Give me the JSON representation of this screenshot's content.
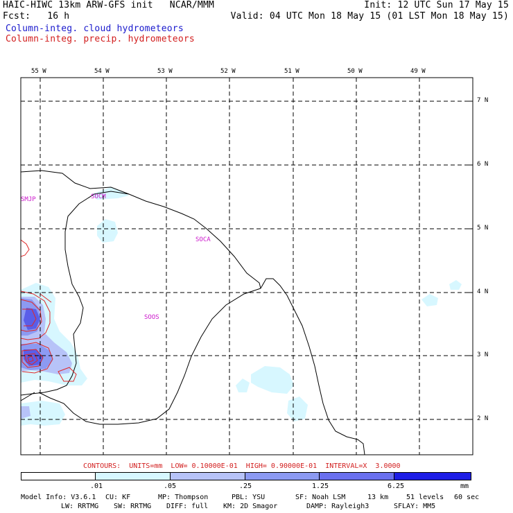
{
  "header": {
    "title_left": "HAIC-HIWC 13km ARW-GFS init   NCAR/MMM",
    "init": "Init: 12 UTC Sun 17 May 15",
    "fcst": "Fcst:   16 h",
    "valid": "Valid: 04 UTC Mon 18 May 15 (01 LST Mon 18 May 15)",
    "legend_cloud": "Column-integ. cloud hydrometeors",
    "legend_precip": "Column-integ. precip. hydrometeors"
  },
  "map": {
    "lon_labels": [
      "55 W",
      "54 W",
      "53 W",
      "52 W",
      "51 W",
      "50 W",
      "49 W"
    ],
    "lat_labels": [
      "7 N",
      "6 N",
      "5 N",
      "4 N",
      "3 N",
      "2 N"
    ],
    "station_labels": [
      "SMJP",
      "SOCM",
      "SOCA",
      "SOOS"
    ]
  },
  "contour_info": "CONTOURS:  UNITS=mm  LOW= 0.10000E-01  HIGH= 0.90000E-01  INTERVAL=X  3.0000",
  "colorbar": {
    "ticks": [
      ".01",
      ".05",
      ".25",
      "1.25",
      "6.25"
    ],
    "unit": "mm",
    "colors": [
      "#ffffff",
      "#d7f7ff",
      "#b7c3f8",
      "#8c9af2",
      "#6a70ee",
      "#4848e6",
      "#1e1ee6"
    ]
  },
  "footer": {
    "line1": [
      "Model Info: V3.6.1",
      "CU: KF",
      "MP: Thompson",
      "PBL: YSU",
      "SF: Noah LSM",
      "13 km",
      "51 levels",
      "60 sec"
    ],
    "line2": [
      "LW: RRTMG",
      "SW: RRTMG",
      "DIFF: full",
      "KM: 2D Smagor",
      "DAMP: Rayleigh3",
      "SFLAY: MM5"
    ]
  }
}
